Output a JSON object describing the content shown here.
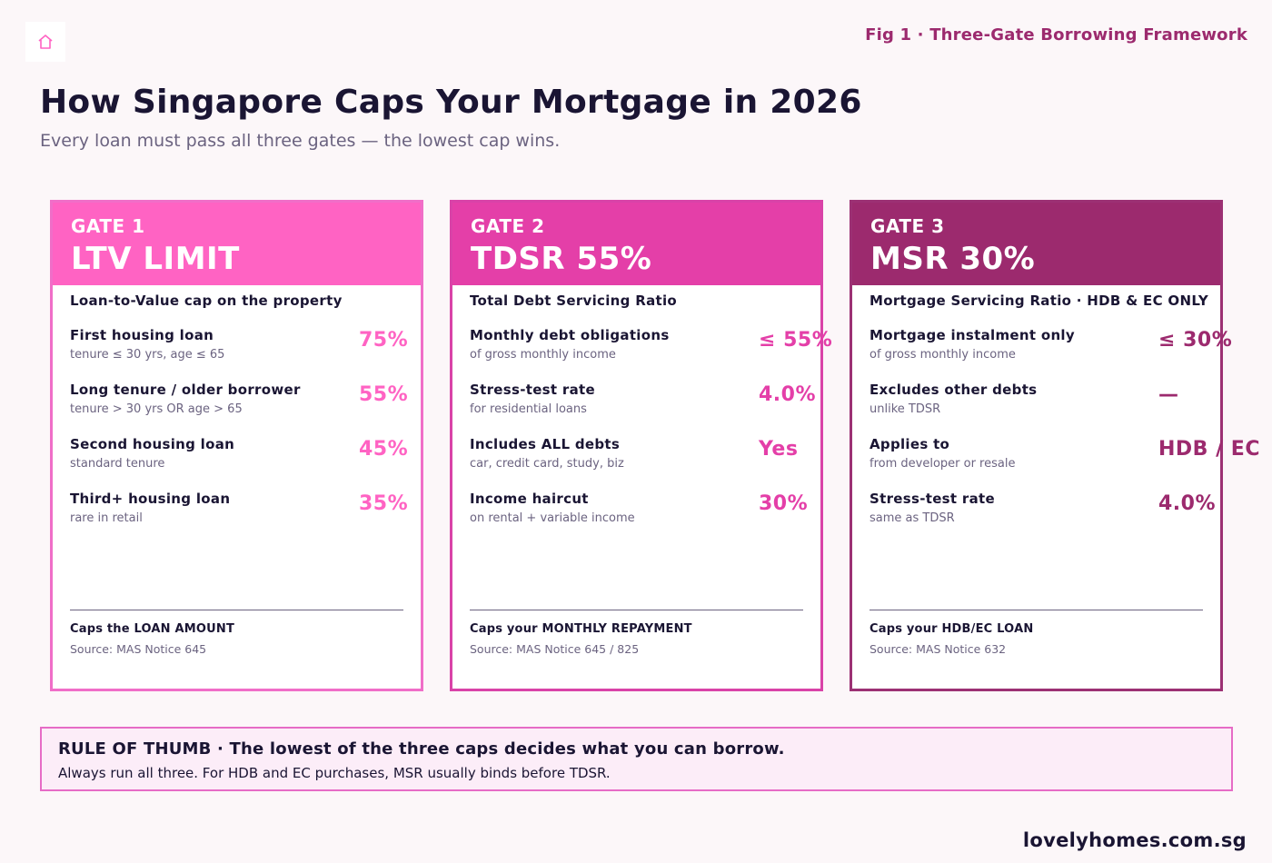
{
  "header": {
    "logo_icon": "home-icon",
    "fig_label": "Fig 1 · Three-Gate Borrowing Framework",
    "title": "How Singapore Caps Your Mortgage in 2026",
    "subtitle": "Every loan must pass all three gates — the lowest cap wins."
  },
  "colors": {
    "gate1": "#ff63c3",
    "gate1_border": "#f06ec8",
    "gate2": "#e43fa8",
    "gate2_border": "#d943a8",
    "gate3": "#9c2a6e",
    "gate3_border": "#9c3174"
  },
  "gates": [
    {
      "gate_label": "GATE 1",
      "name": "LTV LIMIT",
      "sub": "Loan-to-Value cap on the property",
      "rows": [
        {
          "label": "First housing loan",
          "sub": "tenure ≤ 30 yrs, age ≤ 65",
          "value": "75%"
        },
        {
          "label": "Long tenure / older borrower",
          "sub": "tenure > 30 yrs OR age > 65",
          "value": "55%"
        },
        {
          "label": "Second housing loan",
          "sub": "standard tenure",
          "value": "45%"
        },
        {
          "label": "Third+ housing loan",
          "sub": "rare in retail",
          "value": "35%"
        }
      ],
      "foot_title": "Caps the LOAN AMOUNT",
      "foot_source": "Source: MAS Notice 645"
    },
    {
      "gate_label": "GATE 2",
      "name": "TDSR 55%",
      "sub": "Total Debt Servicing Ratio",
      "rows": [
        {
          "label": "Monthly debt obligations",
          "sub": "of gross monthly income",
          "value": "≤ 55%"
        },
        {
          "label": "Stress-test rate",
          "sub": "for residential loans",
          "value": "4.0%"
        },
        {
          "label": "Includes ALL debts",
          "sub": "car, credit card, study, biz",
          "value": "Yes"
        },
        {
          "label": "Income haircut",
          "sub": "on rental + variable income",
          "value": "30%"
        }
      ],
      "foot_title": "Caps your MONTHLY REPAYMENT",
      "foot_source": "Source: MAS Notice 645 / 825"
    },
    {
      "gate_label": "GATE 3",
      "name": "MSR 30%",
      "sub": "Mortgage Servicing Ratio · HDB & EC ONLY",
      "rows": [
        {
          "label": "Mortgage instalment only",
          "sub": "of gross monthly income",
          "value": "≤ 30%"
        },
        {
          "label": "Excludes other debts",
          "sub": "unlike TDSR",
          "value": "—"
        },
        {
          "label": "Applies to",
          "sub": "from developer or resale",
          "value": "HDB / EC"
        },
        {
          "label": "Stress-test rate",
          "sub": "same as TDSR",
          "value": "4.0%"
        }
      ],
      "foot_title": "Caps your HDB/EC LOAN",
      "foot_source": "Source: MAS Notice 632"
    }
  ],
  "rule": {
    "title": "RULE OF THUMB · The lowest of the three caps decides what you can borrow.",
    "text": "Always run all three. For HDB and EC purchases, MSR usually binds before TDSR."
  },
  "footer": {
    "site": "lovelyhomes.com.sg"
  }
}
